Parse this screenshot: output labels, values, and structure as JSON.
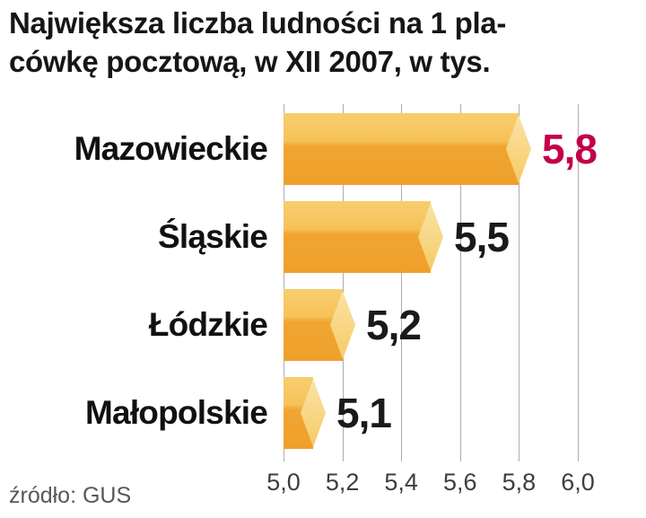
{
  "title": {
    "line1": "Największa liczba ludności na 1 pla-",
    "line2": "cówkę pocztową, w XII 2007, w tys."
  },
  "source": "źródło: GUS",
  "chart_data": {
    "type": "bar",
    "orientation": "horizontal",
    "title": "Największa liczba ludności na 1 placówkę pocztową, w XII 2007, w tys.",
    "categories": [
      "Mazowieckie",
      "Śląskie",
      "Łódzkie",
      "Małopolskie"
    ],
    "values": [
      5.8,
      5.5,
      5.2,
      5.1
    ],
    "value_labels": [
      "5,8",
      "5,5",
      "5,2",
      "5,1"
    ],
    "value_colors": [
      "#C2004B",
      "#1A1A1A",
      "#1A1A1A",
      "#1A1A1A"
    ],
    "xlim": [
      5.0,
      6.0
    ],
    "x_ticks": [
      "5,0",
      "5,2",
      "5,4",
      "5,6",
      "5,8",
      "6,0"
    ],
    "x_tick_values": [
      5.0,
      5.2,
      5.4,
      5.6,
      5.8,
      6.0
    ],
    "grid": true,
    "legend": false,
    "colors": {
      "bar_main": "#EFA02C",
      "bar_light": "#F8CD70",
      "bar_cap": "#FAE3A6",
      "gridline": "#ADADAD",
      "tick_text": "#3E3E3E",
      "source_text": "#585858",
      "title_text": "#161616"
    }
  }
}
